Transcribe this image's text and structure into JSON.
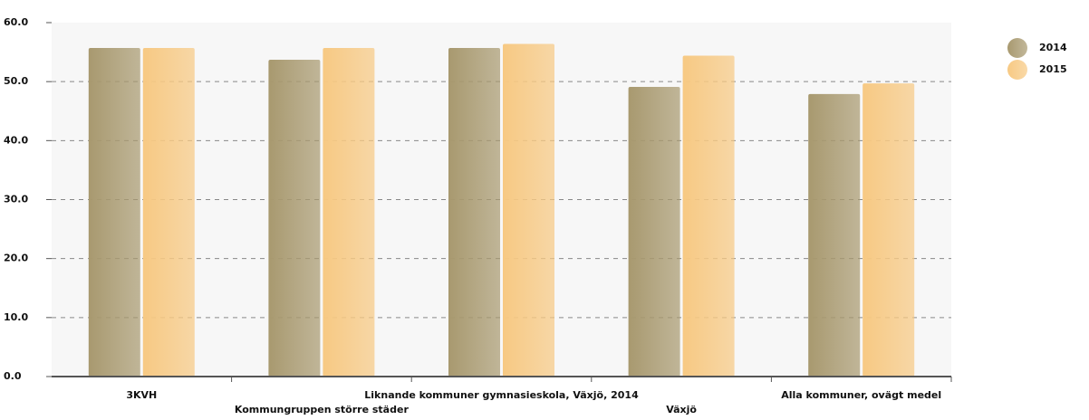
{
  "chart_data": {
    "type": "bar",
    "categories": [
      "3KVH",
      "Kommungruppen större städer",
      "Liknande kommuner gymnasieskola, Växjö, 2014",
      "Växjö",
      "Alla kommuner, ovägt medel"
    ],
    "series": [
      {
        "name": "2014",
        "color": "#a8996f",
        "values": [
          55.7,
          53.7,
          55.7,
          49.1,
          47.9
        ]
      },
      {
        "name": "2015",
        "color": "#f7c983",
        "values": [
          55.7,
          55.7,
          56.4,
          54.4,
          49.7
        ]
      }
    ],
    "ylim": [
      0,
      60
    ],
    "yticks": [
      {
        "value": 0,
        "label": "0.0"
      },
      {
        "value": 10,
        "label": "10.0"
      },
      {
        "value": 20,
        "label": "20.0"
      },
      {
        "value": 30,
        "label": "30.0"
      },
      {
        "value": 40,
        "label": "40.0"
      },
      {
        "value": 50,
        "label": "50.0"
      },
      {
        "value": 60,
        "label": "60.0"
      }
    ],
    "grid": true,
    "legend": "right"
  }
}
